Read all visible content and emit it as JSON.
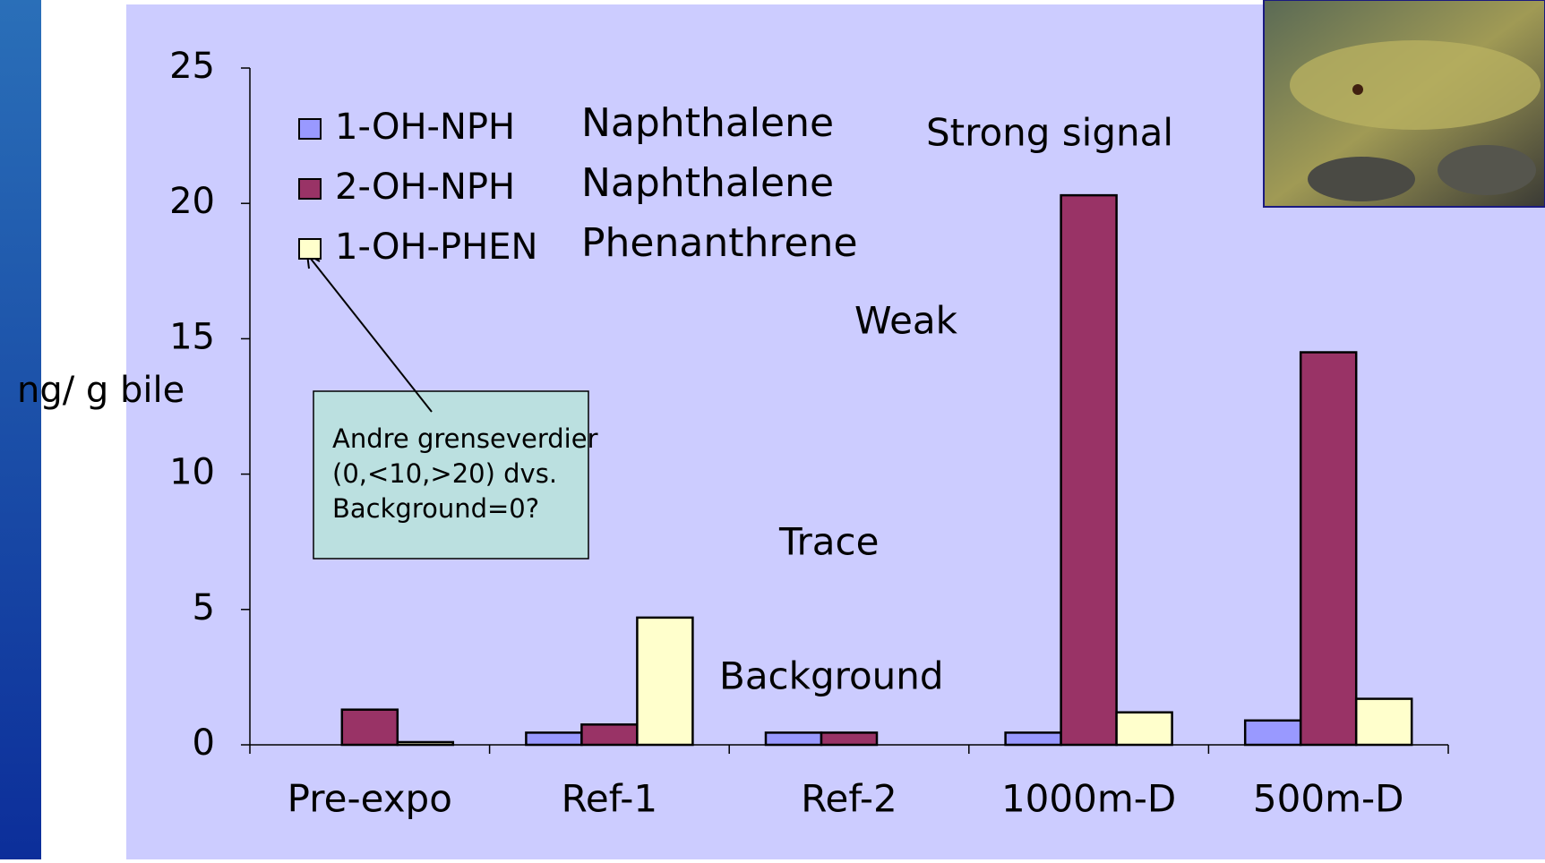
{
  "chart_data": {
    "type": "bar",
    "y_label": "ng/ g bile",
    "categories": [
      "Pre-expo",
      "Ref-1",
      "Ref-2",
      "1000m-D",
      "500m-D"
    ],
    "series": [
      {
        "name": "1-OH-NPH",
        "description": "Naphthalene",
        "color": "#9999ff",
        "values": [
          0,
          0.45,
          0.45,
          0.45,
          0.9
        ]
      },
      {
        "name": "2-OH-NPH",
        "description": "Naphthalene",
        "color": "#993366",
        "values": [
          1.3,
          0.75,
          0.45,
          20.3,
          14.5
        ]
      },
      {
        "name": "1-OH-PHEN",
        "description": "Phenanthrene",
        "color": "#ffffcc",
        "values": [
          0.1,
          4.7,
          0,
          1.2,
          1.7
        ]
      }
    ],
    "ylim": [
      0,
      25
    ],
    "yticks": [
      0,
      5,
      10,
      15,
      20,
      25
    ],
    "annotations": [
      "Strong signal",
      "Weak",
      "Trace",
      "Background"
    ],
    "note": [
      "Andre grenseverdier",
      "(0,<10,>20) dvs.",
      "Background=0?"
    ]
  }
}
